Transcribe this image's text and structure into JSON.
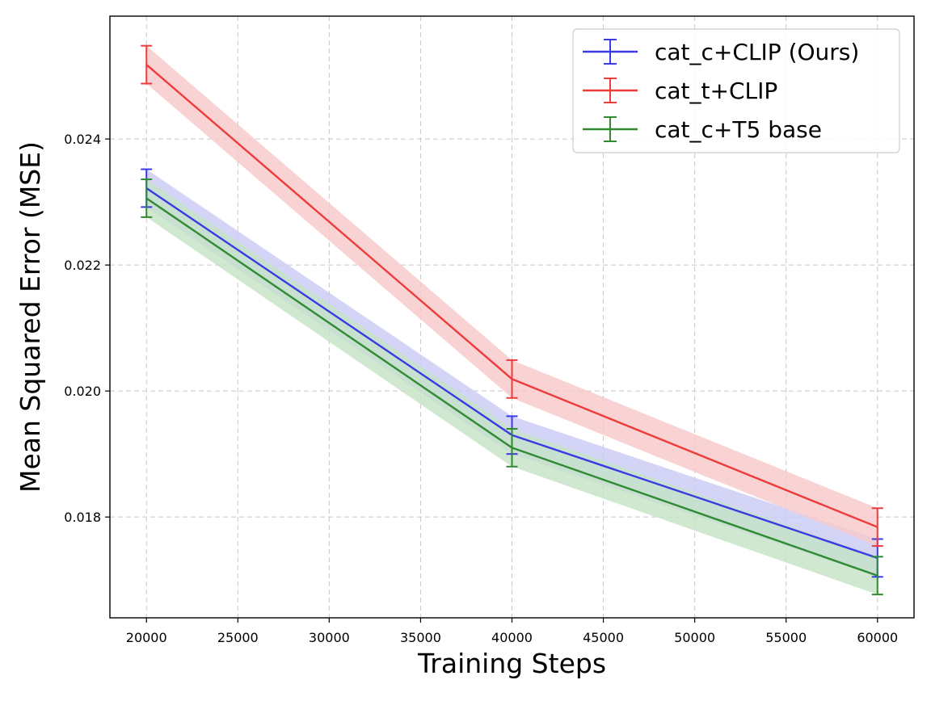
{
  "chart_data": {
    "type": "line",
    "title": "",
    "xlabel": "Training Steps",
    "ylabel": "Mean Squared Error (MSE)",
    "x": [
      20000,
      40000,
      60000
    ],
    "xlim": [
      18000,
      62000
    ],
    "ylim": [
      0.0164,
      0.02595
    ],
    "xticks": [
      20000,
      25000,
      30000,
      35000,
      40000,
      45000,
      50000,
      55000,
      60000
    ],
    "yticks": [
      0.018,
      0.02,
      0.022,
      0.024
    ],
    "xtick_labels": [
      "20000",
      "25000",
      "30000",
      "35000",
      "40000",
      "45000",
      "50000",
      "55000",
      "60000"
    ],
    "ytick_labels": [
      "0.018",
      "0.020",
      "0.022",
      "0.024"
    ],
    "grid": true,
    "legend_position": "top-right",
    "series": [
      {
        "name": "cat_c+CLIP (Ours)",
        "color": "#3a3ae6",
        "band_color": "#c9c9f5",
        "values": [
          0.02322,
          0.0193,
          0.01735
        ],
        "errors": [
          0.0003,
          0.0003,
          0.0003
        ],
        "band": [
          0.0003,
          0.0003,
          0.0003
        ]
      },
      {
        "name": "cat_t+CLIP",
        "color": "#ee3b3b",
        "band_color": "#f8c8c8",
        "values": [
          0.02518,
          0.02019,
          0.01784
        ],
        "errors": [
          0.0003,
          0.0003,
          0.0003
        ],
        "band": [
          0.0003,
          0.0003,
          0.0003
        ]
      },
      {
        "name": "cat_c+T5 base",
        "color": "#2e8b32",
        "band_color": "#c4e2c4",
        "values": [
          0.02306,
          0.0191,
          0.01707
        ],
        "errors": [
          0.0003,
          0.0003,
          0.0003
        ],
        "band": [
          0.0003,
          0.0003,
          0.0003
        ]
      }
    ]
  }
}
